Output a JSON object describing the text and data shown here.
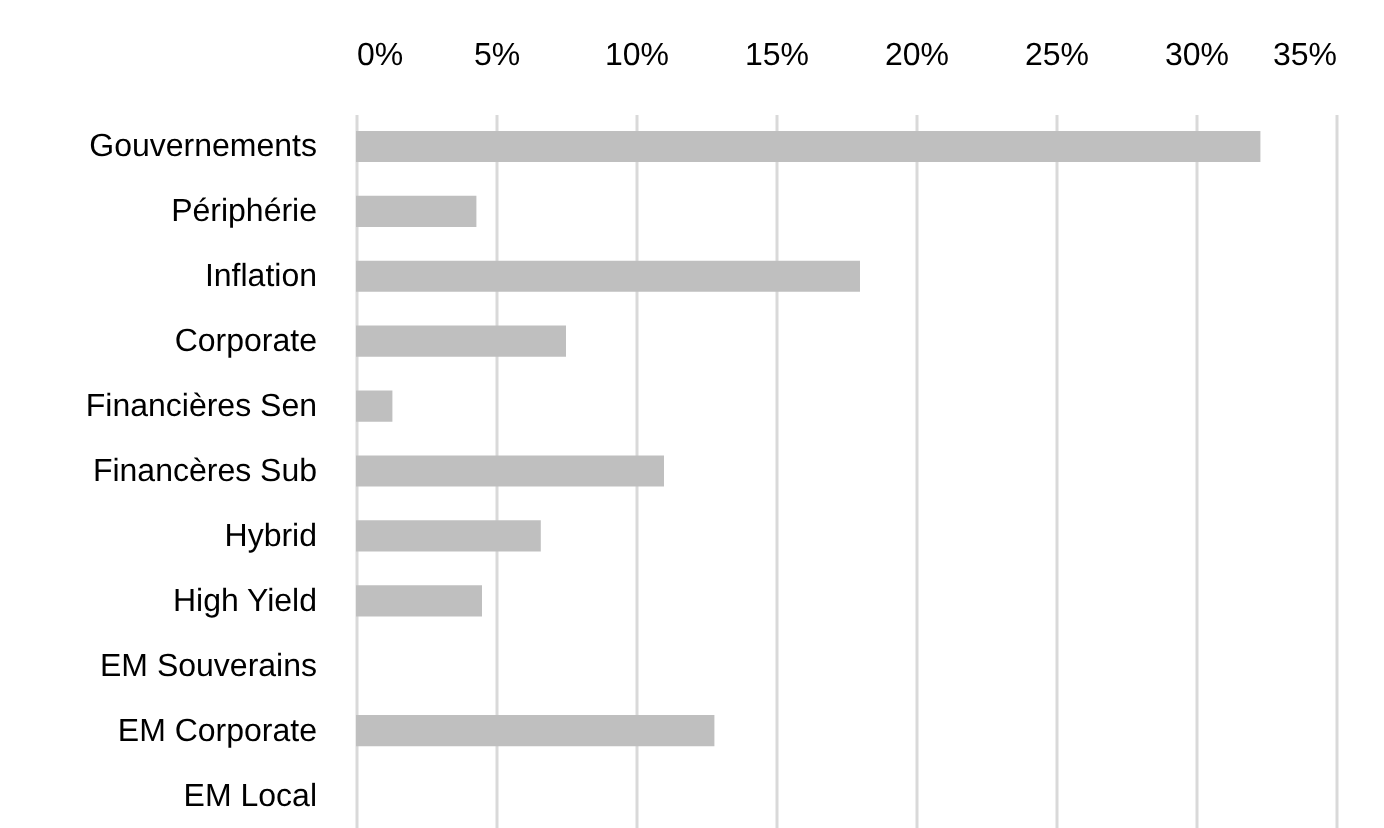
{
  "chart_data": {
    "type": "bar",
    "orientation": "horizontal",
    "categories": [
      "Gouvernements",
      "Périphérie",
      "Inflation",
      "Corporate",
      "Financières Sen",
      "Financères Sub",
      "Hybrid",
      "High Yield",
      "EM Souverains",
      "EM Corporate",
      "EM Local"
    ],
    "values": [
      32.3,
      4.3,
      18.0,
      7.5,
      1.3,
      11.0,
      6.6,
      4.5,
      0,
      12.8,
      0
    ],
    "color": "#bfbfbf",
    "xlim": [
      0,
      35
    ],
    "xticks": [
      {
        "value": 0,
        "label": "0%"
      },
      {
        "value": 5,
        "label": "5%"
      },
      {
        "value": 10,
        "label": "10%"
      },
      {
        "value": 15,
        "label": "15%"
      },
      {
        "value": 20,
        "label": "20%"
      },
      {
        "value": 25,
        "label": "25%"
      },
      {
        "value": 30,
        "label": "30%"
      },
      {
        "value": 35,
        "label": "35%"
      }
    ],
    "grid": "x"
  }
}
